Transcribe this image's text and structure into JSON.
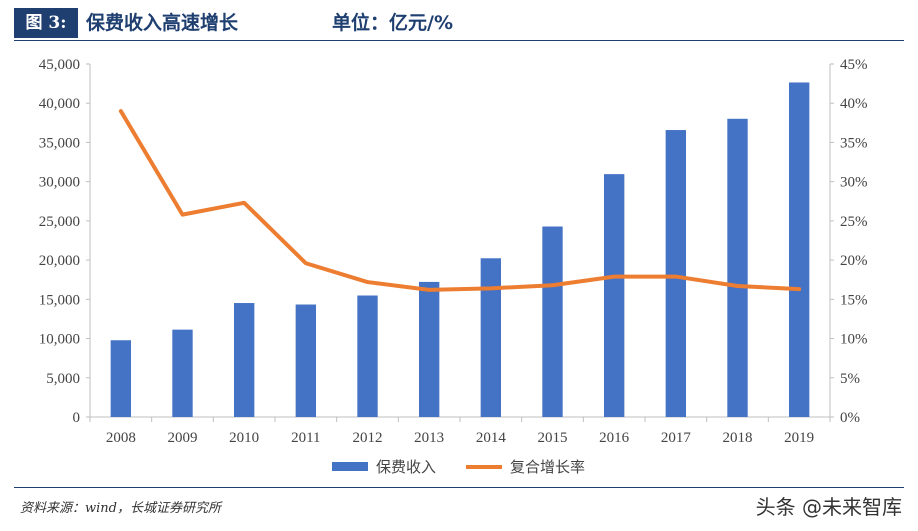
{
  "header": {
    "figure_label": "图 3:",
    "title": "保费收入高速增长",
    "unit": "单位：亿元/%"
  },
  "footer": {
    "source": "资料来源：wind，长城证券研究所",
    "watermark": "头条 @未来智库"
  },
  "colors": {
    "bar": "#4472c4",
    "line": "#ed7d31",
    "accent": "#1f3f70"
  },
  "chart_data": {
    "type": "bar",
    "categories": [
      "2008",
      "2009",
      "2010",
      "2011",
      "2012",
      "2013",
      "2014",
      "2015",
      "2016",
      "2017",
      "2018",
      "2019"
    ],
    "series": [
      {
        "name": "保费收入",
        "type": "bar",
        "axis": "left",
        "values": [
          9784,
          11137,
          14528,
          14339,
          15488,
          17222,
          20235,
          24283,
          30959,
          36581,
          38017,
          42645
        ]
      },
      {
        "name": "复合增长率",
        "type": "line",
        "axis": "right",
        "values": [
          39.0,
          25.8,
          27.3,
          19.6,
          17.2,
          16.2,
          16.4,
          16.8,
          17.9,
          17.9,
          16.7,
          16.3
        ]
      }
    ],
    "y_left": {
      "min": 0,
      "max": 45000,
      "step": 5000,
      "ticks": [
        "0",
        "5,000",
        "10,000",
        "15,000",
        "20,000",
        "25,000",
        "30,000",
        "35,000",
        "40,000",
        "45,000"
      ]
    },
    "y_right": {
      "min": 0,
      "max": 45,
      "step": 5,
      "ticks": [
        "0%",
        "5%",
        "10%",
        "15%",
        "20%",
        "25%",
        "30%",
        "35%",
        "40%",
        "45%"
      ]
    },
    "grid": false,
    "legend": "bottom"
  }
}
